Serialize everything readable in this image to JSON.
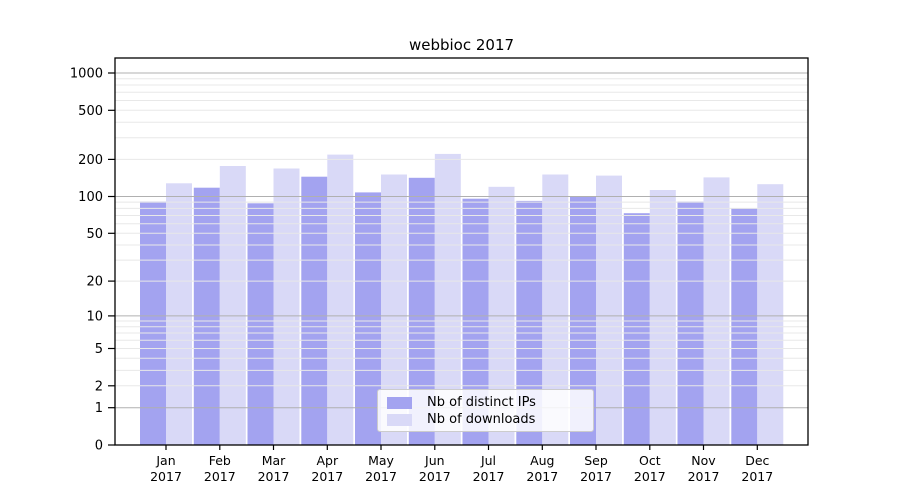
{
  "chart_data": {
    "type": "bar",
    "title": "webbioc 2017",
    "categories": [
      "Jan",
      "Feb",
      "Mar",
      "Apr",
      "May",
      "Jun",
      "Jul",
      "Aug",
      "Sep",
      "Oct",
      "Nov",
      "Dec"
    ],
    "category_year": "2017",
    "series": [
      {
        "name": "Nb of distinct IPs",
        "color": "#a3a3f0",
        "values": [
          91,
          118,
          88,
          145,
          108,
          142,
          96,
          92,
          100,
          73,
          91,
          80
        ]
      },
      {
        "name": "Nb of downloads",
        "color": "#d9d9f7",
        "values": [
          128,
          177,
          169,
          219,
          151,
          222,
          120,
          151,
          148,
          113,
          143,
          126
        ]
      }
    ],
    "xlabel": "",
    "ylabel": "",
    "yscale": "log10(1+x)",
    "yticks": [
      0,
      1,
      2,
      5,
      10,
      20,
      50,
      100,
      200,
      500,
      1000
    ],
    "ylim": [
      0,
      1320
    ],
    "grid": true,
    "grid_major_color": "#b0b0b0",
    "grid_minor_color": "#e8e8e8",
    "frame_color": "#000000",
    "legend_position": "lower center"
  }
}
